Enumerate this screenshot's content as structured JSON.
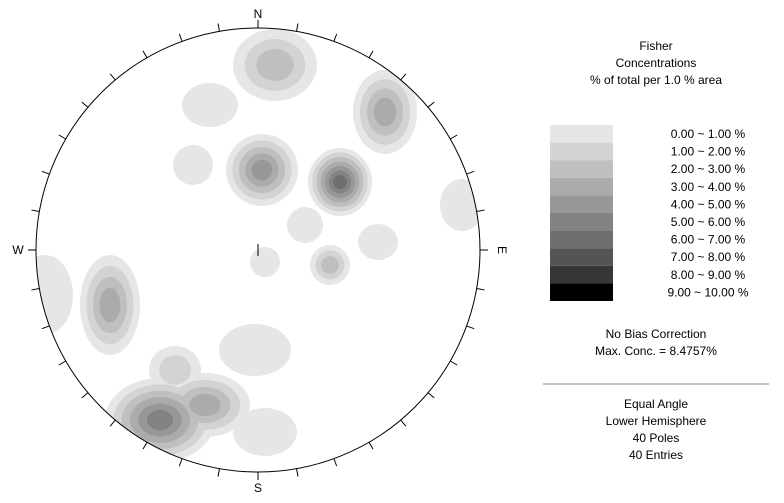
{
  "net": {
    "north": "N",
    "south": "S",
    "west": "W",
    "east": "E"
  },
  "legend": {
    "title": [
      "Fisher",
      "Concentrations",
      "% of total per 1.0 % area"
    ],
    "bins": [
      "0.00 ~  1.00 %",
      "1.00 ~  2.00 %",
      "2.00 ~  3.00 %",
      "3.00 ~  4.00 %",
      "4.00 ~  5.00 %",
      "5.00 ~  6.00 %",
      "6.00 ~  7.00 %",
      "7.00 ~  8.00 %",
      "8.00 ~  9.00 %",
      "9.00 ~ 10.00 %"
    ],
    "colors": [
      "#e6e6e6",
      "#d3d3d3",
      "#bfbfbf",
      "#ababab",
      "#979797",
      "#838383",
      "#6f6f6f",
      "#545454",
      "#363636",
      "#000000"
    ]
  },
  "notes": {
    "bias": "No Bias Correction",
    "max": "Max. Conc. = 8.4757%"
  },
  "info": [
    "Equal Angle",
    "Lower Hemisphere",
    "40 Poles",
    "40 Entries"
  ]
}
